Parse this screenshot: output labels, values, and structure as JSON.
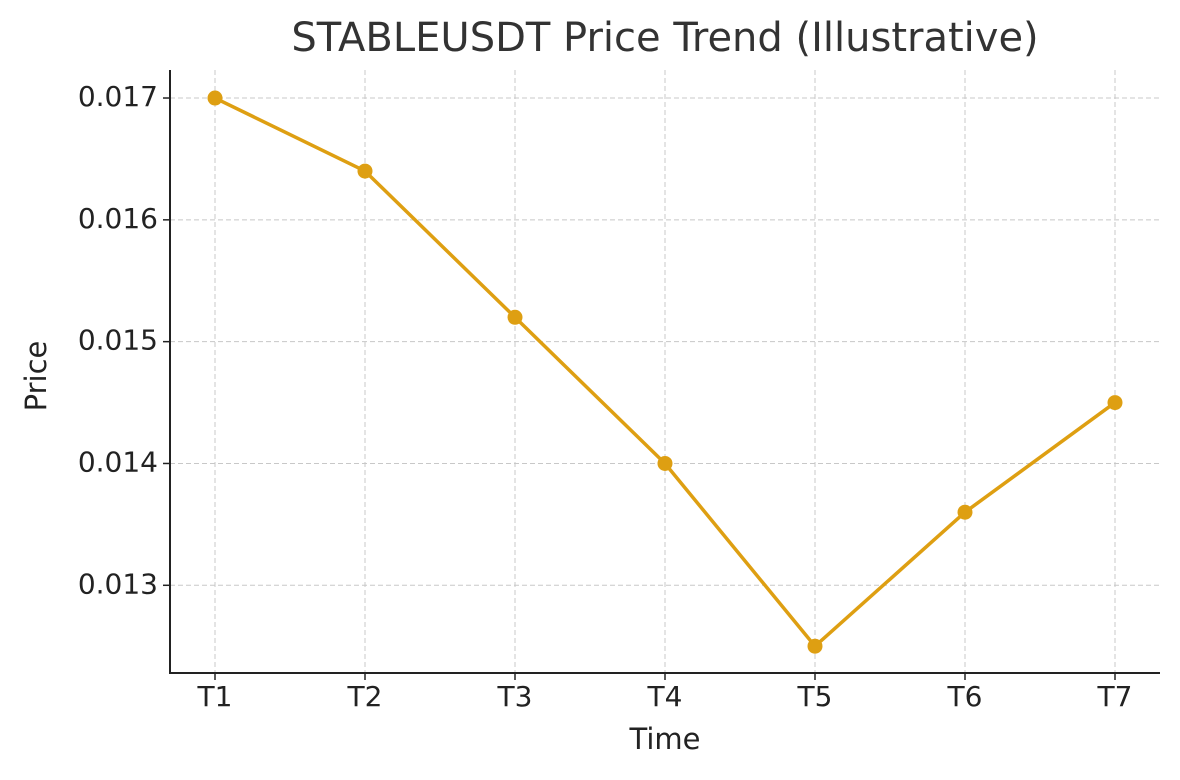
{
  "chart_data": {
    "type": "line",
    "title": "STABLEUSDT Price Trend (Illustrative)",
    "xlabel": "Time",
    "ylabel": "Price",
    "categories": [
      "T1",
      "T2",
      "T3",
      "T4",
      "T5",
      "T6",
      "T7"
    ],
    "values": [
      0.017,
      0.0164,
      0.0152,
      0.014,
      0.0125,
      0.0136,
      0.0145
    ],
    "color": "#de9f12",
    "ylim": [
      0.01228,
      0.01723
    ],
    "yticks": [
      0.013,
      0.014,
      0.015,
      0.016,
      0.017
    ],
    "grid": true
  }
}
